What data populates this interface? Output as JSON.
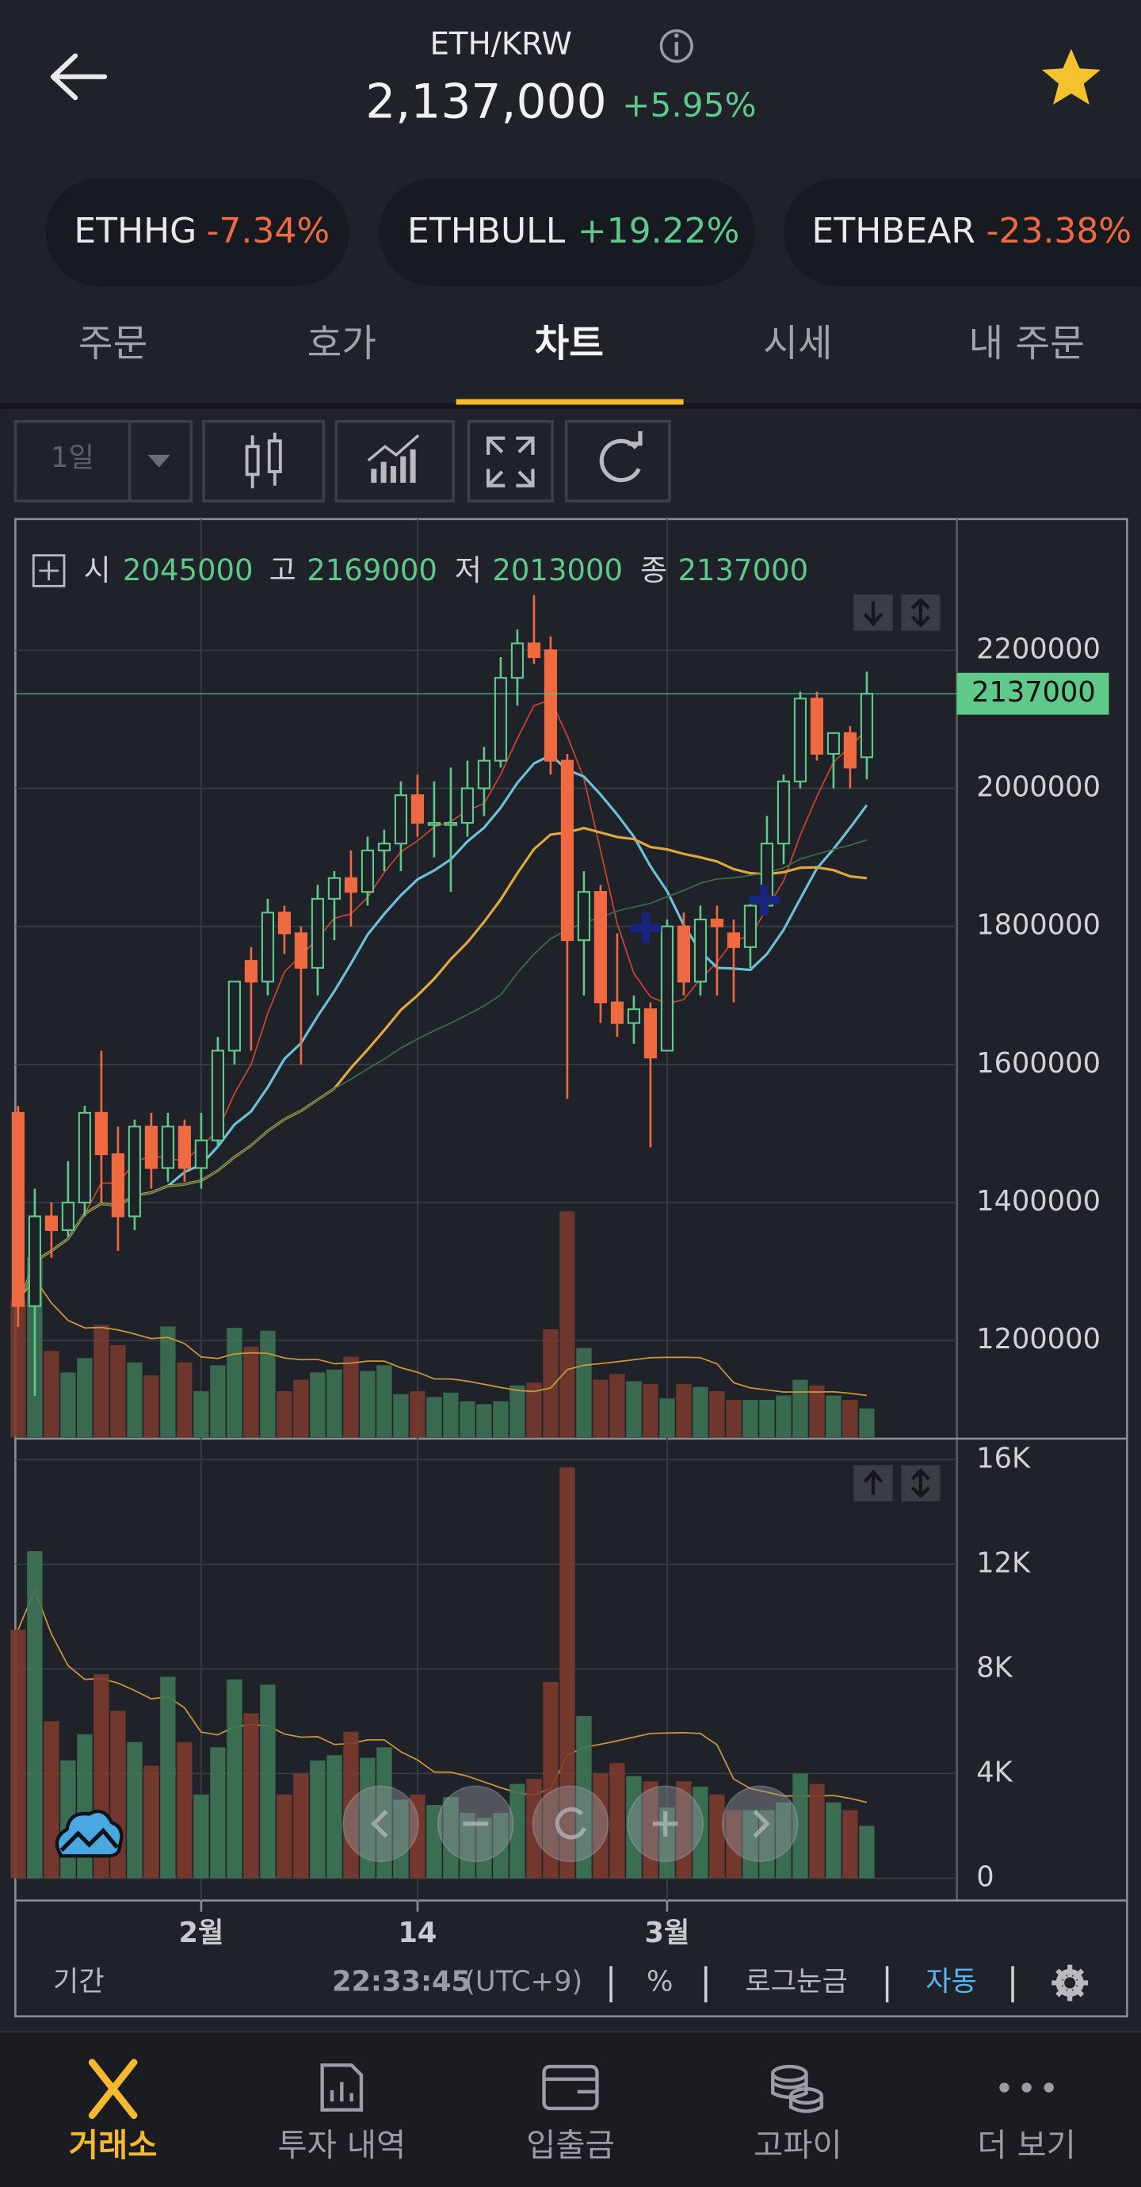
{
  "header": {
    "pair": "ETH/KRW",
    "price": "2,137,000",
    "change": "+5.95%"
  },
  "chips": [
    {
      "name": "ETHHG",
      "change": "-7.34%"
    },
    {
      "name": "ETHBULL",
      "change": "+19.22%"
    },
    {
      "name": "ETHBEAR",
      "change": "-23.38%"
    }
  ],
  "tabs": [
    "주문",
    "호가",
    "차트",
    "시세",
    "내 주문"
  ],
  "toolbar": {
    "interval": "1일"
  },
  "chart_data": {
    "type": "candlestick",
    "legend_labels": [
      "시",
      "고",
      "저",
      "종"
    ],
    "categories": [
      null,
      null,
      null,
      null,
      null,
      null,
      null,
      null,
      null,
      null,
      null,
      "2월",
      null,
      null,
      null,
      null,
      null,
      null,
      null,
      null,
      null,
      null,
      null,
      null,
      "14",
      null,
      null,
      null,
      null,
      null,
      null,
      null,
      null,
      null,
      null,
      null,
      null,
      null,
      null,
      "3월",
      null,
      null,
      null,
      null,
      null,
      null,
      null,
      null,
      null,
      null,
      null,
      null
    ],
    "candles": {
      "open": [
        1530000,
        1250000,
        1380000,
        1360000,
        1400000,
        1530000,
        1470000,
        1380000,
        1510000,
        1450000,
        1510000,
        1450000,
        1490000,
        1620000,
        1750000,
        1720000,
        1820000,
        1790000,
        1740000,
        1840000,
        1870000,
        1850000,
        1910000,
        1920000,
        1990000,
        1950000,
        1950000,
        1950000,
        2000000,
        2040000,
        2160000,
        2210000,
        2200000,
        2040000,
        1780000,
        1850000,
        1690000,
        1660000,
        1680000,
        1620000,
        1800000,
        1720000,
        1810000,
        1790000,
        1770000,
        1830000,
        1920000,
        2010000,
        2130000,
        2050000,
        2080000,
        2045000
      ],
      "high": [
        1540000,
        1420000,
        1400000,
        1460000,
        1540000,
        1620000,
        1510000,
        1520000,
        1530000,
        1530000,
        1520000,
        1530000,
        1640000,
        1720000,
        1770000,
        1840000,
        1830000,
        1800000,
        1860000,
        1880000,
        1910000,
        1930000,
        1940000,
        2010000,
        2020000,
        2010000,
        2030000,
        2040000,
        2060000,
        2190000,
        2230000,
        2280000,
        2220000,
        2050000,
        1880000,
        1860000,
        1790000,
        1700000,
        1690000,
        1810000,
        1820000,
        1830000,
        1830000,
        1810000,
        1840000,
        1960000,
        2020000,
        2140000,
        2140000,
        2080000,
        2090000,
        2169000
      ],
      "low": [
        1220000,
        1120000,
        1320000,
        1350000,
        1380000,
        1400000,
        1330000,
        1360000,
        1420000,
        1430000,
        1430000,
        1420000,
        1480000,
        1600000,
        1620000,
        1700000,
        1760000,
        1600000,
        1700000,
        1780000,
        1800000,
        1830000,
        1880000,
        1880000,
        1930000,
        1900000,
        1850000,
        1930000,
        1960000,
        2030000,
        2120000,
        2180000,
        2020000,
        1550000,
        1700000,
        1660000,
        1640000,
        1630000,
        1480000,
        1620000,
        1700000,
        1700000,
        1700000,
        1690000,
        1740000,
        1820000,
        1890000,
        2000000,
        2040000,
        2000000,
        2000000,
        2013000
      ],
      "close": [
        1250000,
        1380000,
        1360000,
        1400000,
        1530000,
        1470000,
        1380000,
        1510000,
        1450000,
        1510000,
        1450000,
        1490000,
        1620000,
        1720000,
        1720000,
        1820000,
        1790000,
        1740000,
        1840000,
        1870000,
        1850000,
        1910000,
        1920000,
        1990000,
        1950000,
        1950000,
        1950000,
        2000000,
        2040000,
        2160000,
        2210000,
        2190000,
        2040000,
        1780000,
        1850000,
        1690000,
        1660000,
        1680000,
        1610000,
        1800000,
        1720000,
        1810000,
        1800000,
        1770000,
        1830000,
        1920000,
        2010000,
        2130000,
        2050000,
        2080000,
        2030000,
        2137000
      ]
    },
    "ylim": [
      1060000,
      2390000
    ],
    "yticks": [
      1200000,
      1400000,
      1600000,
      1800000,
      2000000,
      2200000
    ],
    "up_color": "#5fc98a",
    "down_color": "#ef6a40",
    "grid": true,
    "volume": {
      "values": [
        9500,
        12500,
        6000,
        4500,
        5500,
        7800,
        6400,
        5200,
        4300,
        7700,
        5200,
        3200,
        5000,
        7600,
        6300,
        7400,
        3200,
        4000,
        4500,
        4700,
        5600,
        4600,
        5000,
        3000,
        3200,
        2800,
        3100,
        2500,
        2300,
        2500,
        3600,
        3800,
        7500,
        15700,
        6200,
        4000,
        4400,
        3900,
        3700,
        2700,
        3700,
        3500,
        3200,
        2600,
        2600,
        2600,
        2900,
        4000,
        3600,
        2900,
        2600,
        2000
      ],
      "ylim": [
        0,
        16000
      ],
      "yticks": [
        0,
        {
          "value": 4000,
          "label": "4K"
        },
        {
          "value": 8000,
          "label": "8K"
        },
        {
          "value": 12000,
          "label": "12K"
        },
        {
          "value": 16000,
          "label": "16K"
        }
      ]
    }
  },
  "footer": {
    "period": "기간",
    "time": "22:33:45",
    "tz": "(UTC+9)",
    "percent": "%",
    "log": "로그눈금",
    "auto": "자동"
  },
  "nav": [
    "거래소",
    "투자 내역",
    "입출금",
    "고파이",
    "더 보기"
  ]
}
